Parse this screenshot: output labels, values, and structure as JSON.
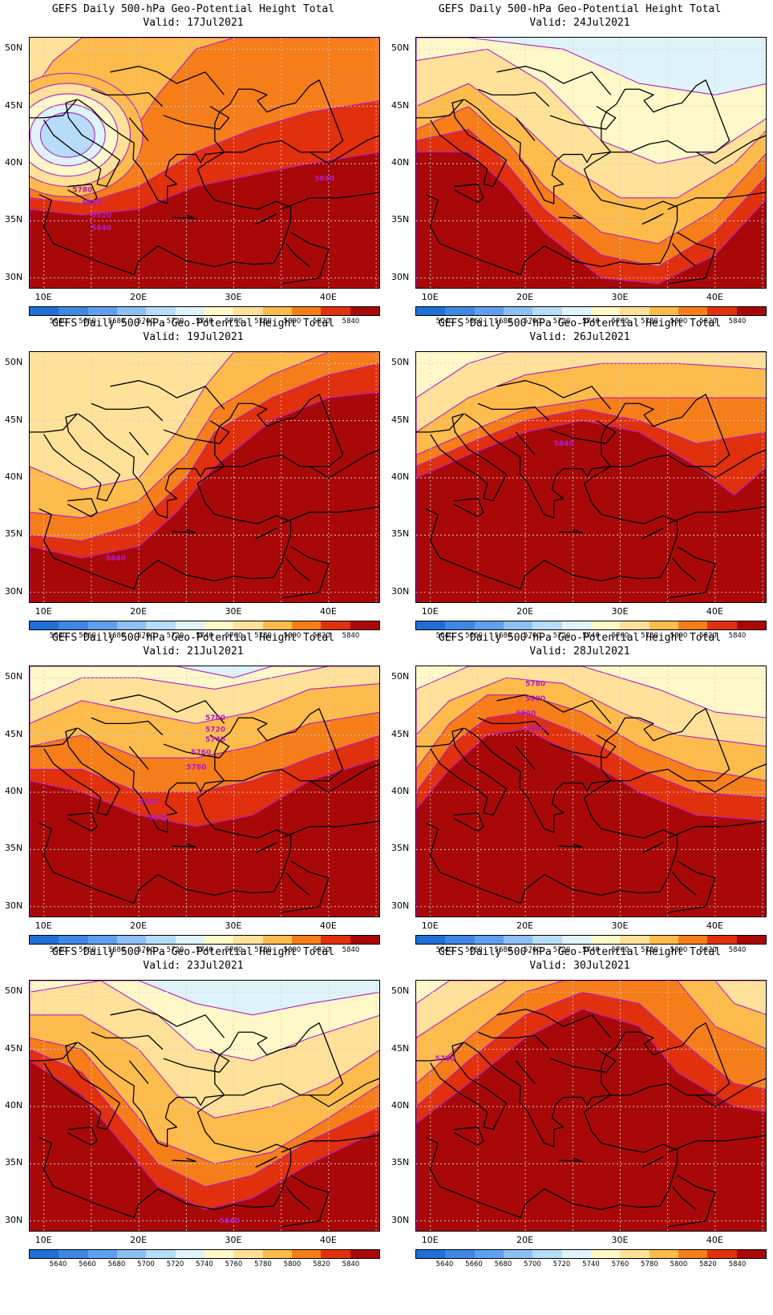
{
  "title": "GEFS Daily 500-hPa Geo-Potential Height Total",
  "valid_prefix": "Valid:",
  "colorbar": {
    "labels": [
      "5640",
      "5660",
      "5680",
      "5700",
      "5720",
      "5740",
      "5760",
      "5780",
      "5800",
      "5820",
      "5840"
    ],
    "colors": [
      "#1f6fd6",
      "#3f87e2",
      "#5fa0ee",
      "#8cc0f4",
      "#b6dcf8",
      "#dff3fb",
      "#fff8c8",
      "#ffe19a",
      "#fdbb4b",
      "#f57d1a",
      "#e0300e",
      "#a80808"
    ]
  },
  "axes": {
    "lat_labels": [
      "50N",
      "45N",
      "40N",
      "35N",
      "30N"
    ],
    "lon_labels": [
      "10E",
      "20E",
      "30E",
      "40E"
    ]
  },
  "panels": [
    {
      "date": "17Jul2021",
      "contour_labels": [
        "5780",
        "5800",
        "5820",
        "5840",
        "5840"
      ]
    },
    {
      "date": "24Jul2021",
      "contour_labels": []
    },
    {
      "date": "19Jul2021",
      "contour_labels": [
        "5840"
      ]
    },
    {
      "date": "26Jul2021",
      "contour_labels": [
        "5840"
      ]
    },
    {
      "date": "21Jul2021",
      "contour_labels": [
        "5700",
        "5720",
        "5740",
        "5760",
        "5780",
        "5800",
        "5820"
      ]
    },
    {
      "date": "28Jul2021",
      "contour_labels": [
        "5780",
        "5800",
        "5820",
        "5840"
      ]
    },
    {
      "date": "23Jul2021",
      "contour_labels": [
        "5840"
      ]
    },
    {
      "date": "30Jul2021",
      "contour_labels": [
        "5780"
      ]
    }
  ]
}
